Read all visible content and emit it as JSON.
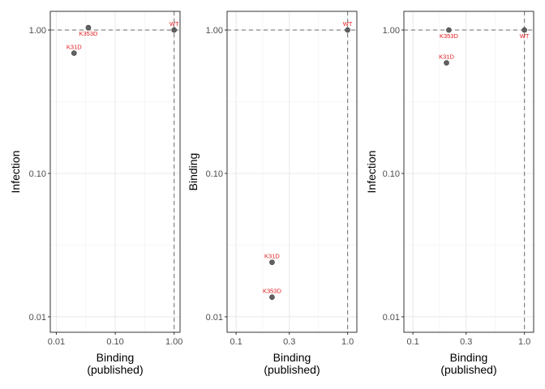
{
  "colors": {
    "point": "#5a5a5a",
    "label": "#e41a1c",
    "grid_major": "#e8e8e8",
    "grid_minor": "#f4f4f4",
    "panel_border": "#333333",
    "ref_line": "#7a7a7a"
  },
  "chart_data": [
    {
      "type": "scatter",
      "scale": "log10",
      "xlabel": [
        "Binding",
        "(published)"
      ],
      "ylabel": "Infection",
      "xlim": [
        0.0079,
        1.26
      ],
      "ylim": [
        0.0078,
        1.35
      ],
      "xticks": [
        {
          "v": 0.01,
          "label": "0.01"
        },
        {
          "v": 0.1,
          "label": "0.10"
        },
        {
          "v": 1.0,
          "label": "1.00"
        }
      ],
      "yticks": [
        {
          "v": 0.01,
          "label": "0.01"
        },
        {
          "v": 0.1,
          "label": "0.10"
        },
        {
          "v": 1.0,
          "label": "1.00"
        }
      ],
      "reference": {
        "x": 1.0,
        "y": 1.0
      },
      "grid": true,
      "points": [
        {
          "label": "WT",
          "x": 1.0,
          "y": 1.0,
          "label_pos": "above"
        },
        {
          "label": "K353D",
          "x": 0.035,
          "y": 1.04,
          "label_pos": "below"
        },
        {
          "label": "K31D",
          "x": 0.02,
          "y": 0.69,
          "label_pos": "above"
        }
      ]
    },
    {
      "type": "scatter",
      "scale": "log10",
      "xlabel": [
        "Binding",
        "(published)"
      ],
      "ylabel": "Binding",
      "xlim": [
        0.083,
        1.21
      ],
      "ylim": [
        0.0078,
        1.35
      ],
      "xticks": [
        {
          "v": 0.1,
          "label": "0.1"
        },
        {
          "v": 0.3,
          "label": "0.3"
        },
        {
          "v": 1.0,
          "label": "1.0"
        }
      ],
      "yticks": [
        {
          "v": 0.01,
          "label": "0.01"
        },
        {
          "v": 0.1,
          "label": "0.10"
        },
        {
          "v": 1.0,
          "label": "1.00"
        }
      ],
      "reference": {
        "x": 1.0,
        "y": 1.0
      },
      "grid": true,
      "points": [
        {
          "label": "WT",
          "x": 1.0,
          "y": 1.0,
          "label_pos": "above"
        },
        {
          "label": "K31D",
          "x": 0.21,
          "y": 0.024,
          "label_pos": "above"
        },
        {
          "label": "K353D",
          "x": 0.21,
          "y": 0.0137,
          "label_pos": "above"
        }
      ]
    },
    {
      "type": "scatter",
      "scale": "log10",
      "xlabel": [
        "Binding",
        "(published)"
      ],
      "ylabel": "Infection",
      "xlim": [
        0.083,
        1.21
      ],
      "ylim": [
        0.0078,
        1.35
      ],
      "xticks": [
        {
          "v": 0.1,
          "label": "0.1"
        },
        {
          "v": 0.3,
          "label": "0.3"
        },
        {
          "v": 1.0,
          "label": "1.0"
        }
      ],
      "yticks": [
        {
          "v": 0.01,
          "label": "0.01"
        },
        {
          "v": 0.1,
          "label": "0.10"
        },
        {
          "v": 1.0,
          "label": "1.00"
        }
      ],
      "reference": {
        "x": 1.0,
        "y": 1.0
      },
      "grid": true,
      "points": [
        {
          "label": "WT",
          "x": 1.0,
          "y": 1.0,
          "label_pos": "below"
        },
        {
          "label": "K353D",
          "x": 0.21,
          "y": 1.0,
          "label_pos": "below"
        },
        {
          "label": "K31D",
          "x": 0.2,
          "y": 0.59,
          "label_pos": "above"
        }
      ]
    }
  ]
}
